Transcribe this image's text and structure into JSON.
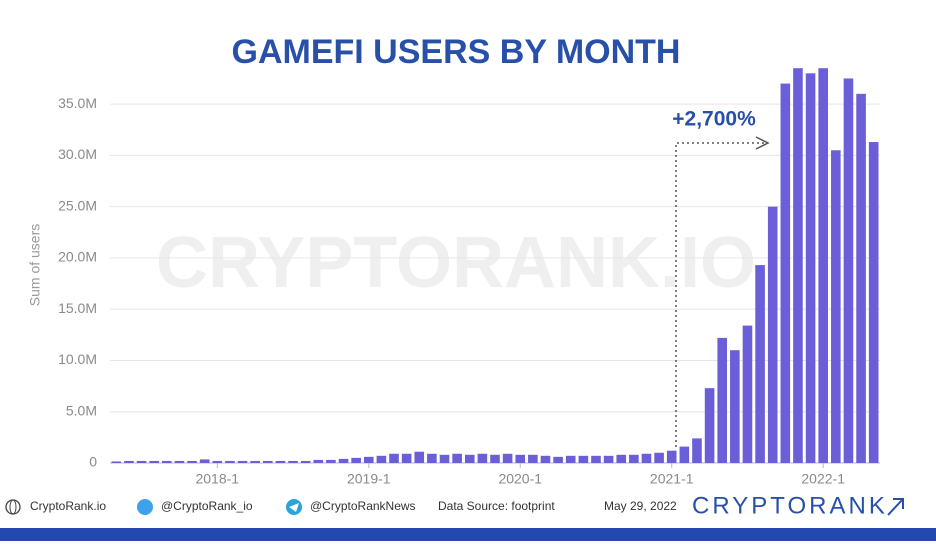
{
  "chart_data": {
    "type": "bar",
    "title": "GAMEFI USERS BY MONTH",
    "y_label": "Sum of users",
    "watermark": "CRYPTORANK.IO",
    "annotation": "+2,700%",
    "color": "#6a5fd8",
    "grid": true,
    "categories": [
      null,
      null,
      null,
      null,
      null,
      null,
      null,
      null,
      "2018-1",
      null,
      null,
      null,
      null,
      null,
      null,
      null,
      null,
      null,
      null,
      null,
      "2019-1",
      null,
      null,
      null,
      null,
      null,
      null,
      null,
      null,
      null,
      null,
      null,
      "2020-1",
      null,
      null,
      null,
      null,
      null,
      null,
      null,
      null,
      null,
      null,
      null,
      "2021-1",
      null,
      null,
      null,
      null,
      null,
      null,
      null,
      null,
      null,
      null,
      null,
      "2022-1",
      null,
      null,
      null,
      null
    ],
    "values": [
      150000,
      200000,
      200000,
      200000,
      200000,
      200000,
      200000,
      350000,
      200000,
      200000,
      200000,
      200000,
      200000,
      200000,
      200000,
      200000,
      300000,
      300000,
      400000,
      500000,
      600000,
      700000,
      900000,
      900000,
      1100000,
      900000,
      800000,
      900000,
      800000,
      900000,
      800000,
      900000,
      800000,
      800000,
      700000,
      600000,
      700000,
      700000,
      700000,
      700000,
      800000,
      800000,
      900000,
      1000000,
      1200000,
      1600000,
      2400000,
      7300000,
      12200000,
      11000000,
      13400000,
      19300000,
      25000000,
      37000000,
      38500000,
      38000000,
      38500000,
      30500000,
      37500000,
      36000000,
      31300000
    ],
    "ylim": [
      0,
      39300000
    ],
    "yticks": [
      0,
      {
        "value": 5000000,
        "label": "5.0M"
      },
      {
        "value": 10000000,
        "label": "10.0M"
      },
      {
        "value": 15000000,
        "label": "15.0M"
      },
      {
        "value": 20000000,
        "label": "20.0M"
      },
      {
        "value": 25000000,
        "label": "25.0M"
      },
      {
        "value": 30000000,
        "label": "30.0M"
      },
      {
        "value": 35000000,
        "label": "35.0M"
      }
    ]
  },
  "footer": {
    "website": "CryptoRank.io",
    "twitter": "@CryptoRank_io",
    "telegram": "@CryptoRankNews",
    "source": "Data Source: footprint",
    "date": "May 29, 2022",
    "brand": "CRYPTORANK"
  }
}
